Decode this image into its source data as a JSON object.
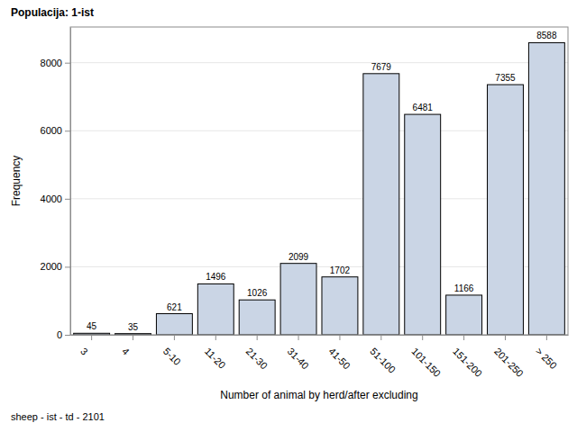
{
  "chart_data": {
    "type": "bar",
    "title": "Populacija: 1-ist",
    "x_label": "Number of animal by herd/after excluding",
    "y_label": "Frequency",
    "footnote": "sheep - ist - td - 2101",
    "categories": [
      "3",
      "4",
      "5-10",
      "11-20",
      "21-30",
      "31-40",
      "41-50",
      "51-100",
      "101-150",
      "151-200",
      "201-250",
      "> 250"
    ],
    "values": [
      45,
      35,
      621,
      1496,
      1026,
      2099,
      1702,
      7679,
      6481,
      1166,
      7355,
      8588
    ],
    "color": "#cad5e5",
    "ylim": [
      0,
      9050
    ],
    "yticks": [
      0,
      2000,
      4000,
      6000,
      8000
    ],
    "grid": true,
    "data_labels": true
  }
}
